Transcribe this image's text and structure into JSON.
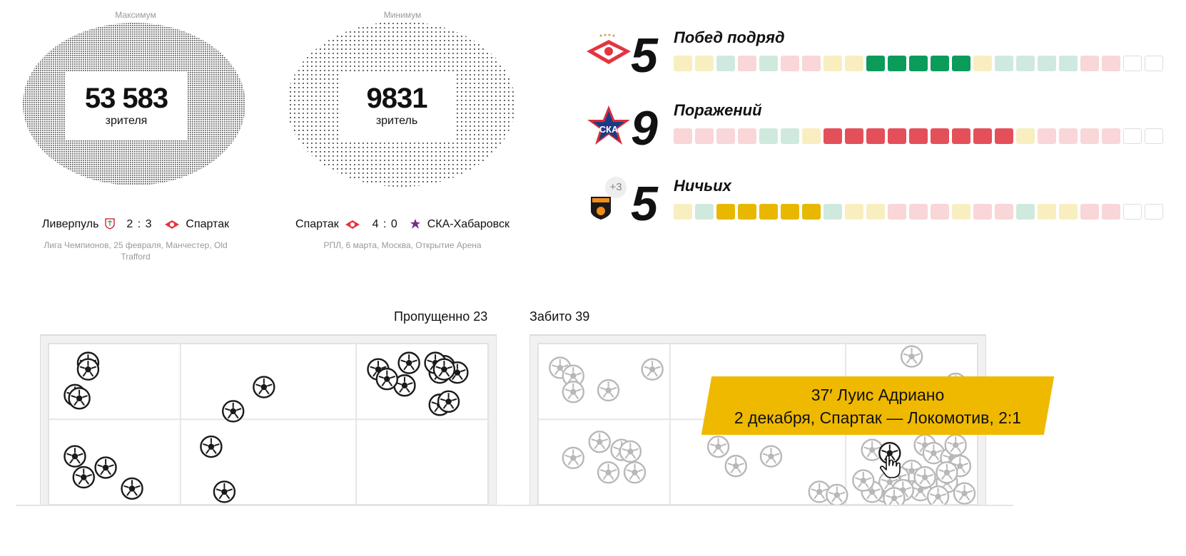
{
  "attendance": {
    "max": {
      "caption": "Максимум",
      "value": "53 583",
      "unit": "зрителя",
      "home": "Ливерпуль",
      "score": "2 : 3",
      "away": "Спартак",
      "meta": "Лига Чемпионов, 25 февраля, Манчестер, Old Trafford"
    },
    "min": {
      "caption": "Минимум",
      "value": "9831",
      "unit": "зритель",
      "home": "Спартак",
      "score": "4 : 0",
      "away": "СКА-Хабаровск",
      "meta": "РПЛ, 6 марта, Москва, Открытие Арена"
    }
  },
  "colors": {
    "win_strong": "#0c9b5b",
    "win_light": "#cfe9df",
    "loss_strong": "#e4505a",
    "loss_light": "#f9d6d8",
    "draw_strong": "#e8b800",
    "draw_light": "#f8eebf",
    "empty_border": "#dddddd",
    "tooltip": "#efb900",
    "ball_dark": "#1a1a1a",
    "ball_gray": "#b8b8b8"
  },
  "streaks": [
    {
      "count": "5",
      "label": "Побед подряд",
      "logo": "spartak-logo",
      "results": [
        "D",
        "D",
        "W",
        "L",
        "W",
        "L",
        "L",
        "D",
        "D",
        "W",
        "W",
        "W",
        "W",
        "W",
        "D",
        "W",
        "W",
        "W",
        "W",
        "L",
        "L",
        "E",
        "E"
      ],
      "highlight": [
        9,
        10,
        11,
        12,
        13
      ]
    },
    {
      "count": "9",
      "label": "Поражений",
      "logo": "ska-logo",
      "results": [
        "L",
        "L",
        "L",
        "L",
        "W",
        "W",
        "D",
        "L",
        "L",
        "L",
        "L",
        "L",
        "L",
        "L",
        "L",
        "L",
        "D",
        "L",
        "L",
        "L",
        "L",
        "E",
        "E"
      ],
      "highlight": [
        7,
        8,
        9,
        10,
        11,
        12,
        13,
        14,
        15
      ]
    },
    {
      "count": "5",
      "label": "Ничьих",
      "logo": "ural-logo",
      "badge": "+3",
      "results": [
        "D",
        "W",
        "D",
        "D",
        "D",
        "D",
        "D",
        "W",
        "D",
        "D",
        "L",
        "L",
        "L",
        "D",
        "L",
        "L",
        "W",
        "D",
        "D",
        "L",
        "L",
        "E",
        "E"
      ],
      "highlight": [
        2,
        3,
        4,
        5,
        6
      ]
    }
  ],
  "goals": {
    "conceded": {
      "title": "Пропущенно 23"
    },
    "scored": {
      "title": "Забито 39"
    }
  },
  "tooltip": {
    "line1": "37′ Луис Адриано",
    "line2": "2 декабря, Спартак — Локомотив, 2:1"
  },
  "chart_data": [
    {
      "type": "scatter",
      "title": "Пропущенно 23",
      "xlim": [
        0,
        100
      ],
      "ylim": [
        0,
        100
      ],
      "grid_cols": [
        0,
        30,
        70,
        100
      ],
      "grid_rows": [
        0,
        47,
        100
      ],
      "points": [
        [
          9,
          12
        ],
        [
          9,
          16
        ],
        [
          6,
          32
        ],
        [
          7,
          34
        ],
        [
          42,
          42
        ],
        [
          49,
          27
        ],
        [
          75,
          16
        ],
        [
          82,
          12
        ],
        [
          90,
          14
        ],
        [
          81,
          26
        ],
        [
          89,
          18
        ],
        [
          89,
          38
        ],
        [
          6,
          70
        ],
        [
          8,
          83
        ],
        [
          13,
          77
        ],
        [
          19,
          90
        ],
        [
          37,
          64
        ],
        [
          40,
          92
        ],
        [
          93,
          18
        ],
        [
          88,
          12
        ],
        [
          91,
          36
        ],
        [
          90,
          16
        ],
        [
          77,
          22
        ]
      ]
    },
    {
      "type": "scatter",
      "title": "Забито 39",
      "xlim": [
        0,
        100
      ],
      "ylim": [
        0,
        100
      ],
      "grid_cols": [
        0,
        30,
        70,
        100
      ],
      "grid_rows": [
        0,
        47,
        100
      ],
      "highlight_index": 38,
      "points": [
        [
          5,
          15
        ],
        [
          8,
          20
        ],
        [
          8,
          30
        ],
        [
          16,
          29
        ],
        [
          26,
          16
        ],
        [
          85,
          8
        ],
        [
          95,
          25
        ],
        [
          8,
          71
        ],
        [
          14,
          61
        ],
        [
          19,
          66
        ],
        [
          21,
          67
        ],
        [
          16,
          80
        ],
        [
          22,
          80
        ],
        [
          41,
          64
        ],
        [
          45,
          76
        ],
        [
          53,
          70
        ],
        [
          64,
          92
        ],
        [
          76,
          66
        ],
        [
          88,
          63
        ],
        [
          90,
          68
        ],
        [
          94,
          71
        ],
        [
          95,
          63
        ],
        [
          96,
          76
        ],
        [
          93,
          86
        ],
        [
          87,
          91
        ],
        [
          79,
          92
        ],
        [
          91,
          95
        ],
        [
          97,
          93
        ],
        [
          85,
          79
        ],
        [
          82,
          83
        ],
        [
          88,
          83
        ],
        [
          93,
          80
        ],
        [
          80,
          86
        ],
        [
          76,
          92
        ],
        [
          83,
          91
        ],
        [
          74,
          85
        ],
        [
          68,
          94
        ],
        [
          81,
          96
        ],
        [
          80,
          68
        ]
      ]
    }
  ]
}
